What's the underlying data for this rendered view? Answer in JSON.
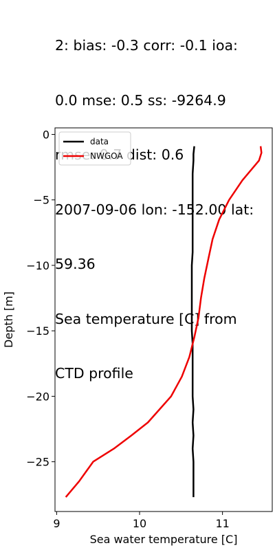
{
  "title_lines": [
    "2: bias: -0.3  corr: -0.1  ioa:",
    "0.0  mse: 0.5  ss: -9264.9",
    "rmse: 0.7  dist: 0.6",
    "2007-09-06 lon: -152.00 lat:",
    "59.36",
    "Sea temperature [C] from",
    "CTD profile"
  ],
  "chart_data": {
    "type": "line",
    "xlabel": "Sea water temperature [C]",
    "ylabel": "Depth [m]",
    "xlim": [
      8.98,
      11.6
    ],
    "ylim": [
      -28.8,
      0.5
    ],
    "xticks": [
      9,
      10,
      11
    ],
    "yticks": [
      0,
      -5,
      -10,
      -15,
      -20,
      -25
    ],
    "xtick_labels": [
      "9",
      "10",
      "11"
    ],
    "ytick_labels": [
      "0",
      "−5",
      "−10",
      "−15",
      "−20",
      "−25"
    ],
    "grid": false,
    "legend_position": "top-left",
    "series": [
      {
        "name": "data",
        "color": "#000000",
        "x": [
          10.66,
          10.65,
          10.65,
          10.64,
          10.64,
          10.64,
          10.64,
          10.64,
          10.64,
          10.64,
          10.63,
          10.63,
          10.63,
          10.63,
          10.63,
          10.63,
          10.64,
          10.64,
          10.64,
          10.64,
          10.64,
          10.65,
          10.64,
          10.65,
          10.64,
          10.65,
          10.65,
          10.65
        ],
        "y": [
          -0.9,
          -1.5,
          -2.0,
          -3.0,
          -4.0,
          -5.0,
          -6.0,
          -7.0,
          -8.0,
          -9.0,
          -10.0,
          -11.0,
          -12.0,
          -13.0,
          -14.0,
          -15.0,
          -16.0,
          -17.0,
          -18.0,
          -19.0,
          -20.0,
          -21.0,
          -22.0,
          -23.0,
          -24.0,
          -25.0,
          -26.0,
          -27.7
        ]
      },
      {
        "name": "NWGOA",
        "color": "#ee0000",
        "x": [
          11.46,
          11.47,
          11.44,
          11.24,
          11.08,
          10.96,
          10.88,
          10.83,
          10.78,
          10.74,
          10.71,
          10.66,
          10.6,
          10.51,
          10.38,
          10.24,
          10.1,
          9.9,
          9.69,
          9.44,
          9.27,
          9.11
        ],
        "y": [
          -0.9,
          -1.4,
          -2.0,
          -3.5,
          -5.0,
          -6.5,
          -8.0,
          -9.5,
          -11.0,
          -12.5,
          -14.0,
          -15.5,
          -17.0,
          -18.5,
          -20.0,
          -21.0,
          -22.0,
          -23.0,
          -24.0,
          -25.0,
          -26.5,
          -27.7
        ]
      }
    ]
  }
}
